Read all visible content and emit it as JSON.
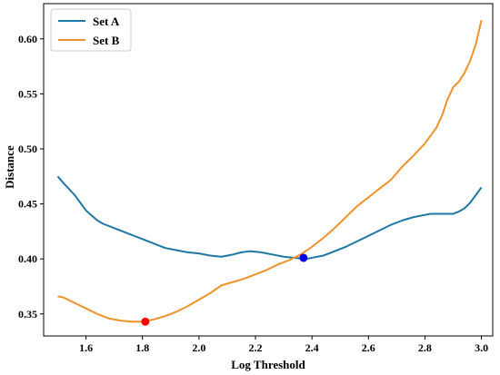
{
  "chart_data": {
    "type": "line",
    "xlabel": "Log Threshold",
    "ylabel": "Distance",
    "xlim": [
      1.45,
      3.04
    ],
    "ylim": [
      0.33,
      0.632
    ],
    "xticks": [
      1.6,
      1.8,
      2.0,
      2.2,
      2.4,
      2.6,
      2.8,
      3.0
    ],
    "xtick_labels": [
      "1.6",
      "1.8",
      "2.0",
      "2.2",
      "2.4",
      "2.6",
      "2.8",
      "3.0"
    ],
    "yticks": [
      0.35,
      0.4,
      0.45,
      0.5,
      0.55,
      0.6
    ],
    "ytick_labels": [
      "0.35",
      "0.40",
      "0.45",
      "0.50",
      "0.55",
      "0.60"
    ],
    "grid": false,
    "legend_position": "top-left",
    "series": [
      {
        "name": "Set A",
        "color": "#1f77a4",
        "x": [
          1.5,
          1.52,
          1.56,
          1.6,
          1.64,
          1.66,
          1.7,
          1.75,
          1.8,
          1.85,
          1.88,
          1.92,
          1.96,
          2.0,
          2.04,
          2.08,
          2.12,
          2.15,
          2.18,
          2.22,
          2.26,
          2.3,
          2.34,
          2.38,
          2.4,
          2.44,
          2.48,
          2.52,
          2.56,
          2.6,
          2.64,
          2.68,
          2.72,
          2.76,
          2.8,
          2.82,
          2.84,
          2.86,
          2.88,
          2.9,
          2.92,
          2.94,
          2.96,
          2.98,
          3.0
        ],
        "y": [
          0.475,
          0.469,
          0.458,
          0.444,
          0.435,
          0.432,
          0.428,
          0.423,
          0.418,
          0.413,
          0.41,
          0.408,
          0.406,
          0.405,
          0.403,
          0.402,
          0.404,
          0.406,
          0.407,
          0.406,
          0.404,
          0.402,
          0.401,
          0.4,
          0.401,
          0.403,
          0.407,
          0.411,
          0.416,
          0.421,
          0.426,
          0.431,
          0.435,
          0.438,
          0.44,
          0.441,
          0.441,
          0.441,
          0.441,
          0.441,
          0.443,
          0.446,
          0.451,
          0.458,
          0.465
        ]
      },
      {
        "name": "Set B",
        "color": "#f0922a",
        "x": [
          1.5,
          1.52,
          1.56,
          1.6,
          1.64,
          1.68,
          1.72,
          1.76,
          1.8,
          1.84,
          1.88,
          1.92,
          1.96,
          2.0,
          2.04,
          2.08,
          2.12,
          2.16,
          2.2,
          2.24,
          2.28,
          2.32,
          2.36,
          2.4,
          2.44,
          2.48,
          2.52,
          2.56,
          2.6,
          2.64,
          2.68,
          2.72,
          2.76,
          2.8,
          2.84,
          2.86,
          2.88,
          2.9,
          2.92,
          2.94,
          2.96,
          2.98,
          3.0
        ],
        "y": [
          0.366,
          0.365,
          0.36,
          0.355,
          0.35,
          0.346,
          0.344,
          0.343,
          0.343,
          0.345,
          0.348,
          0.352,
          0.357,
          0.363,
          0.369,
          0.376,
          0.379,
          0.382,
          0.386,
          0.39,
          0.395,
          0.399,
          0.404,
          0.411,
          0.419,
          0.428,
          0.438,
          0.448,
          0.456,
          0.464,
          0.472,
          0.484,
          0.494,
          0.505,
          0.519,
          0.53,
          0.545,
          0.556,
          0.561,
          0.569,
          0.58,
          0.595,
          0.617
        ]
      }
    ],
    "markers": [
      {
        "x": 1.81,
        "y": 0.343,
        "color": "#ff0000"
      },
      {
        "x": 2.37,
        "y": 0.401,
        "color": "#0000ee"
      }
    ]
  }
}
